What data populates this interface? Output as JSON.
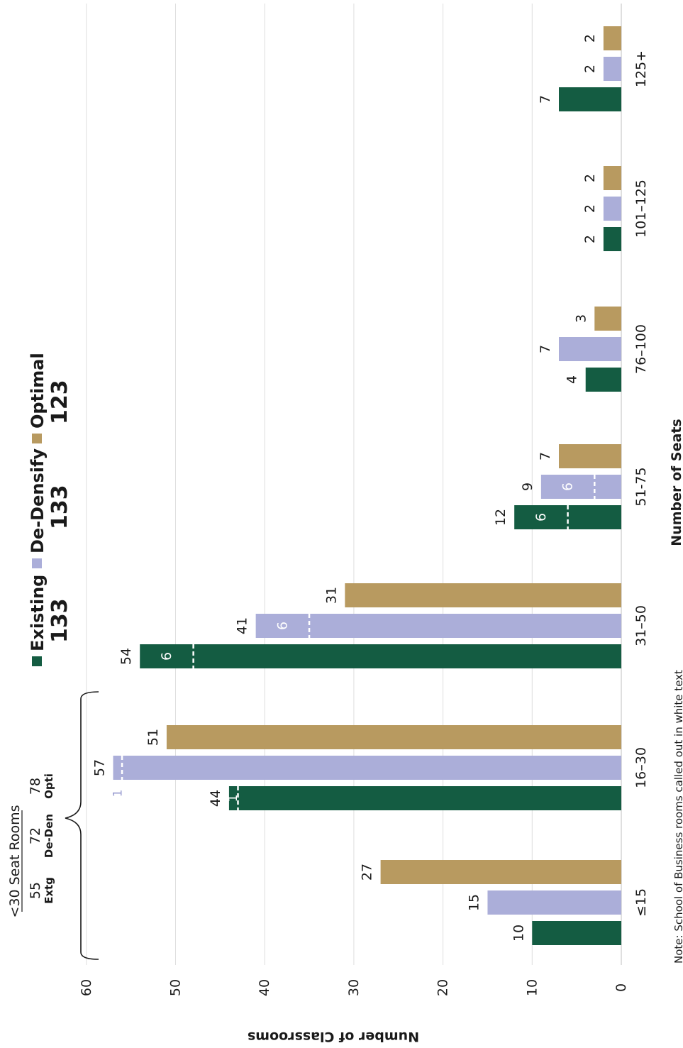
{
  "chart_data": {
    "type": "bar",
    "orientation": "horizontal (page rotated; read with value axis vertical)",
    "xlabel": "Number of Seats",
    "ylabel": "Number of Classrooms",
    "ylim": [
      0,
      60
    ],
    "y_ticks": [
      "0",
      "10",
      "20",
      "30",
      "40",
      "50",
      "60"
    ],
    "grid": true,
    "categories": [
      "≤15",
      "16–30",
      "31–50",
      "51-75",
      "76–100",
      "101–125",
      "125+"
    ],
    "series": [
      {
        "name": "Existing",
        "total": "133",
        "color": "#145c42",
        "values": [
          10,
          44,
          54,
          12,
          4,
          2,
          7
        ]
      },
      {
        "name": "De-Densify",
        "total": "133",
        "color": "#abaed9",
        "values": [
          15,
          57,
          41,
          9,
          7,
          2,
          2
        ]
      },
      {
        "name": "Optimal",
        "total": "123",
        "color": "#b89a60",
        "values": [
          27,
          51,
          31,
          7,
          3,
          2,
          2
        ]
      }
    ],
    "business_rooms": [
      {
        "category": "16–30",
        "series": "Existing",
        "value": 1,
        "label": "1"
      },
      {
        "category": "16–30",
        "series": "De-Densify",
        "value": 1,
        "label": "1"
      },
      {
        "category": "31–50",
        "series": "Existing",
        "value": 6,
        "label": "6"
      },
      {
        "category": "31–50",
        "series": "De-Densify",
        "value": 6,
        "label": "6"
      },
      {
        "category": "51-75",
        "series": "Existing",
        "value": 6,
        "label": "6"
      },
      {
        "category": "51-75",
        "series": "De-Densify",
        "value": 6,
        "label": "6"
      }
    ],
    "bracket": {
      "title": "<30 Seat Rooms",
      "values": [
        "55",
        "72",
        "78"
      ],
      "labels": [
        "Extg",
        "De-Den",
        "Opti"
      ]
    },
    "note": "Note: School of Business rooms called out in white text"
  }
}
